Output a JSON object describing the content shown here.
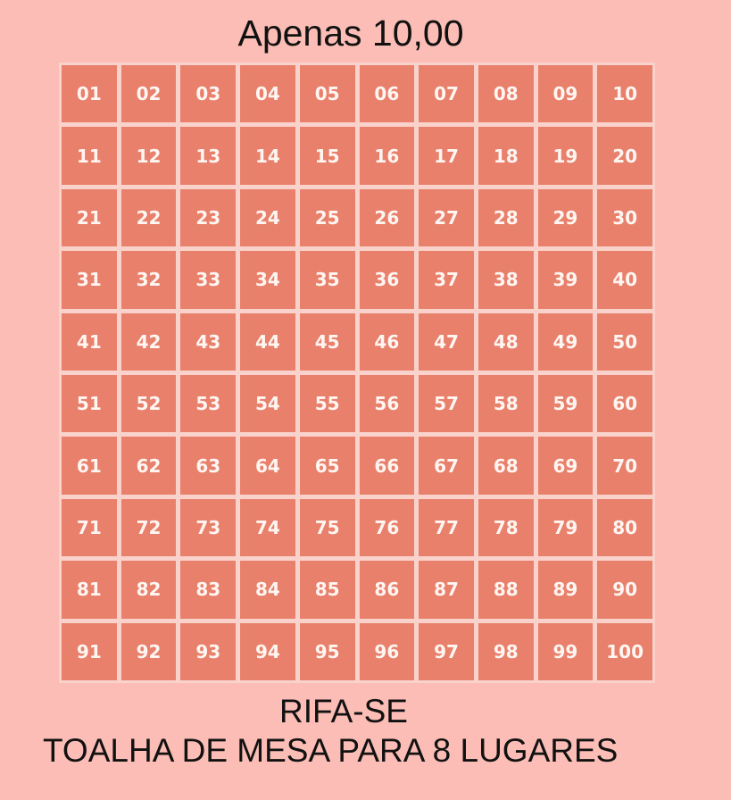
{
  "title": "Apenas 10,00",
  "numbers": [
    "01",
    "02",
    "03",
    "04",
    "05",
    "06",
    "07",
    "08",
    "09",
    "10",
    "11",
    "12",
    "13",
    "14",
    "15",
    "16",
    "17",
    "18",
    "19",
    "20",
    "21",
    "22",
    "23",
    "24",
    "25",
    "26",
    "27",
    "28",
    "29",
    "30",
    "31",
    "32",
    "33",
    "34",
    "35",
    "36",
    "37",
    "38",
    "39",
    "40",
    "41",
    "42",
    "43",
    "44",
    "45",
    "46",
    "47",
    "48",
    "49",
    "50",
    "51",
    "52",
    "53",
    "54",
    "55",
    "56",
    "57",
    "58",
    "59",
    "60",
    "61",
    "62",
    "63",
    "64",
    "65",
    "66",
    "67",
    "68",
    "69",
    "70",
    "71",
    "72",
    "73",
    "74",
    "75",
    "76",
    "77",
    "78",
    "79",
    "80",
    "81",
    "82",
    "83",
    "84",
    "85",
    "86",
    "87",
    "88",
    "89",
    "90",
    "91",
    "92",
    "93",
    "94",
    "95",
    "96",
    "97",
    "98",
    "99",
    "100"
  ],
  "heading": "RIFA-SE",
  "prize": "TOALHA DE MESA PARA 8 LUGARES",
  "colors": {
    "background": "#fbbdb5",
    "cell": "#e8806c",
    "cell_text": "#fff6f2"
  }
}
